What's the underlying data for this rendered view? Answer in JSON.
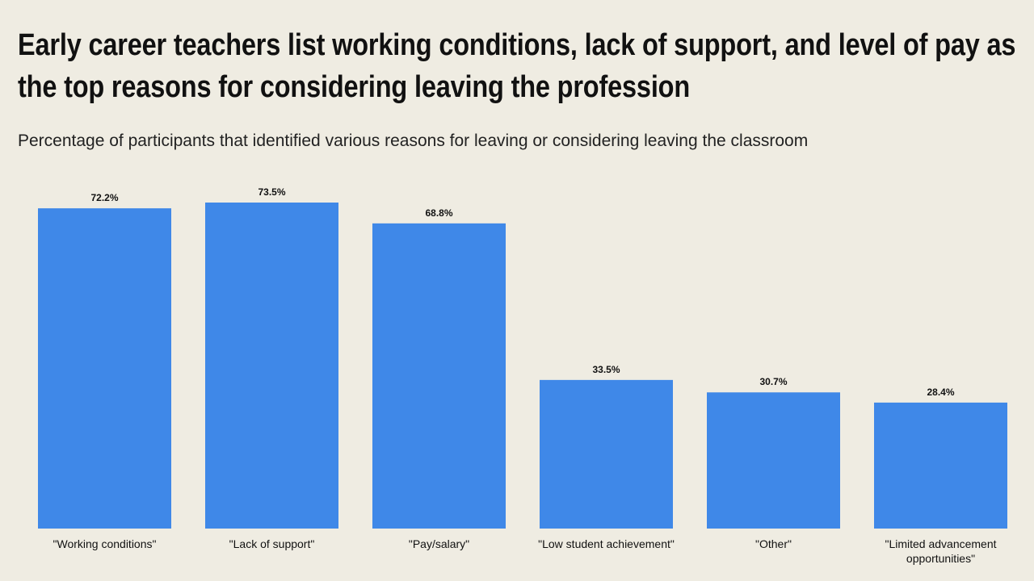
{
  "chart_data": {
    "type": "bar",
    "title": "Early career teachers list working conditions, lack of support, and level of pay as the top reasons for considering leaving the profession",
    "subtitle": "Percentage of participants that identified various reasons for leaving or considering leaving the classroom",
    "categories": [
      "\"Working conditions\"",
      "\"Lack of support\"",
      "\"Pay/salary\"",
      "\"Low student achievement\"",
      "\"Other\"",
      "\"Limited advancement opportunities\""
    ],
    "values": [
      72.2,
      73.5,
      68.8,
      33.5,
      30.7,
      28.4
    ],
    "value_labels": [
      "72.2%",
      "73.5%",
      "68.8%",
      "33.5%",
      "30.7%",
      "28.4%"
    ],
    "color": "#3f88e8"
  }
}
